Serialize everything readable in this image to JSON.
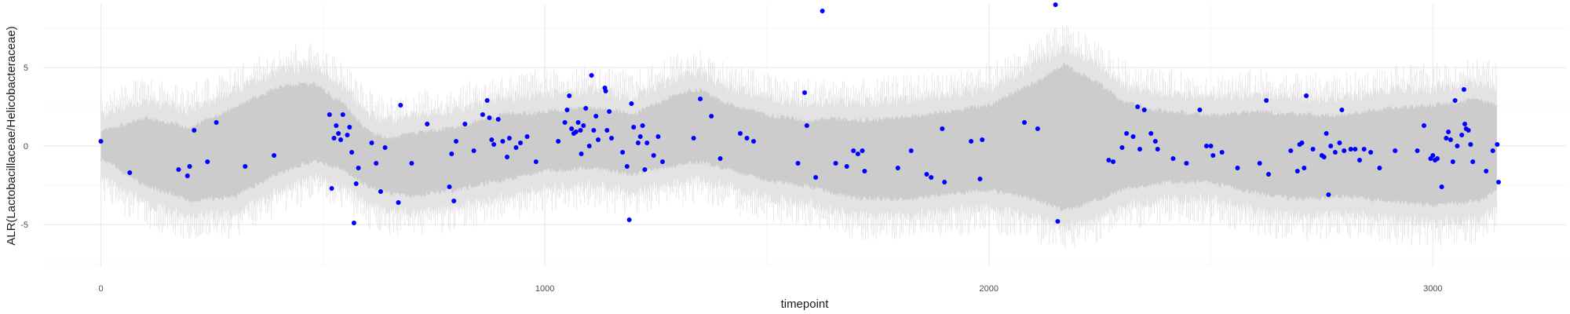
{
  "chart_data": {
    "type": "scatter",
    "title": "",
    "xlabel": "timepoint",
    "ylabel": "ALR(Lactobacillaceae/Helicobacteraceae)",
    "xlim": [
      -130,
      3300
    ],
    "ylim": [
      -7.7,
      9.0
    ],
    "x_ticks": [
      0,
      1000,
      2000,
      3000
    ],
    "x_tick_labels": [
      "0",
      "1000",
      "2000",
      "3000"
    ],
    "y_ticks": [
      -5,
      0,
      5
    ],
    "y_tick_labels": [
      "-5",
      "0",
      "5"
    ],
    "grid": true,
    "legend": "none",
    "colors": {
      "points": "#0000ff",
      "inner_band": "#cccccc",
      "outer_band": "#e3e3e3",
      "noise": "#d9d9d9",
      "grid_major": "#ebebeb",
      "grid_minor": "#f5f5f5"
    },
    "band": {
      "x": [
        0,
        100,
        200,
        300,
        400,
        480,
        550,
        600,
        650,
        700,
        800,
        900,
        1000,
        1100,
        1200,
        1300,
        1350,
        1400,
        1500,
        1600,
        1650,
        1700,
        1800,
        1900,
        2000,
        2100,
        2170,
        2250,
        2300,
        2400,
        2500,
        2600,
        2700,
        2800,
        2900,
        3000,
        3100,
        3145
      ],
      "inner_low": [
        -0.8,
        -2.5,
        -3.5,
        -3.2,
        -1.8,
        -0.9,
        -1.6,
        -2.6,
        -3.0,
        -3.2,
        -2.8,
        -2.2,
        -1.6,
        -1.4,
        -1.8,
        -1.2,
        -1.0,
        -1.4,
        -2.2,
        -2.6,
        -3.0,
        -3.3,
        -3.4,
        -3.1,
        -2.8,
        -3.4,
        -4.1,
        -3.4,
        -2.8,
        -2.3,
        -2.3,
        -3.0,
        -3.4,
        -3.2,
        -3.5,
        -3.8,
        -3.5,
        -2.9
      ],
      "inner_high": [
        0.9,
        1.8,
        1.2,
        2.4,
        3.8,
        4.0,
        2.6,
        1.0,
        0.5,
        0.8,
        1.2,
        2.0,
        2.2,
        2.5,
        2.0,
        3.3,
        3.6,
        2.8,
        2.0,
        1.6,
        1.8,
        1.6,
        1.8,
        2.2,
        2.6,
        4.0,
        5.2,
        4.0,
        2.8,
        2.2,
        2.0,
        2.2,
        2.0,
        2.0,
        2.4,
        2.6,
        3.0,
        2.6
      ],
      "outer_low": [
        -1.9,
        -3.6,
        -4.6,
        -4.3,
        -2.9,
        -2.0,
        -2.7,
        -3.7,
        -4.1,
        -4.3,
        -3.9,
        -3.3,
        -2.7,
        -2.5,
        -2.9,
        -2.3,
        -2.1,
        -2.5,
        -3.3,
        -3.7,
        -4.1,
        -4.4,
        -4.5,
        -4.2,
        -3.9,
        -4.5,
        -5.2,
        -4.5,
        -3.9,
        -3.4,
        -3.4,
        -4.1,
        -4.5,
        -4.3,
        -4.6,
        -4.9,
        -4.6,
        -4.0
      ],
      "outer_high": [
        2.0,
        2.9,
        2.3,
        3.5,
        4.9,
        5.1,
        3.7,
        2.1,
        1.6,
        1.9,
        2.3,
        3.1,
        3.3,
        3.6,
        3.1,
        4.4,
        4.7,
        3.9,
        3.1,
        2.7,
        2.9,
        2.7,
        2.9,
        3.3,
        3.7,
        5.1,
        6.3,
        5.1,
        3.9,
        3.3,
        3.1,
        3.3,
        3.1,
        3.1,
        3.5,
        3.7,
        4.1,
        3.7
      ]
    },
    "points": [
      [
        0,
        0.3
      ],
      [
        65,
        -1.7
      ],
      [
        175,
        -1.5
      ],
      [
        200,
        -1.3
      ],
      [
        195,
        -1.9
      ],
      [
        210,
        1.0
      ],
      [
        240,
        -1.0
      ],
      [
        260,
        1.5
      ],
      [
        325,
        -1.3
      ],
      [
        390,
        -0.6
      ],
      [
        515,
        2.0
      ],
      [
        520,
        -2.7
      ],
      [
        525,
        0.5
      ],
      [
        530,
        1.3
      ],
      [
        535,
        0.8
      ],
      [
        540,
        0.4
      ],
      [
        545,
        2.0
      ],
      [
        555,
        0.7
      ],
      [
        560,
        1.2
      ],
      [
        565,
        -0.4
      ],
      [
        570,
        -4.9
      ],
      [
        575,
        -2.4
      ],
      [
        580,
        -1.4
      ],
      [
        610,
        0.2
      ],
      [
        620,
        -1.1
      ],
      [
        630,
        -2.9
      ],
      [
        640,
        -0.1
      ],
      [
        670,
        -3.6
      ],
      [
        675,
        2.6
      ],
      [
        700,
        -1.1
      ],
      [
        735,
        1.4
      ],
      [
        785,
        -2.6
      ],
      [
        790,
        -0.5
      ],
      [
        795,
        -3.5
      ],
      [
        800,
        0.3
      ],
      [
        820,
        1.4
      ],
      [
        840,
        -0.3
      ],
      [
        860,
        2.0
      ],
      [
        870,
        2.9
      ],
      [
        875,
        1.8
      ],
      [
        880,
        0.4
      ],
      [
        885,
        0.1
      ],
      [
        895,
        1.7
      ],
      [
        905,
        0.3
      ],
      [
        915,
        -0.7
      ],
      [
        920,
        0.5
      ],
      [
        935,
        -0.1
      ],
      [
        945,
        0.2
      ],
      [
        960,
        0.6
      ],
      [
        980,
        -1.0
      ],
      [
        1030,
        0.3
      ],
      [
        1045,
        1.5
      ],
      [
        1050,
        2.3
      ],
      [
        1055,
        3.2
      ],
      [
        1060,
        1.1
      ],
      [
        1065,
        0.8
      ],
      [
        1070,
        0.9
      ],
      [
        1075,
        1.5
      ],
      [
        1080,
        1.0
      ],
      [
        1082,
        -0.5
      ],
      [
        1087,
        1.3
      ],
      [
        1092,
        2.4
      ],
      [
        1100,
        0.0
      ],
      [
        1105,
        4.5
      ],
      [
        1110,
        1.0
      ],
      [
        1115,
        1.9
      ],
      [
        1120,
        0.4
      ],
      [
        1135,
        3.7
      ],
      [
        1137,
        3.5
      ],
      [
        1140,
        1.0
      ],
      [
        1145,
        2.2
      ],
      [
        1150,
        0.5
      ],
      [
        1175,
        -0.4
      ],
      [
        1185,
        -1.3
      ],
      [
        1190,
        -4.7
      ],
      [
        1195,
        2.7
      ],
      [
        1200,
        1.2
      ],
      [
        1210,
        0.2
      ],
      [
        1215,
        0.6
      ],
      [
        1220,
        1.3
      ],
      [
        1225,
        -1.5
      ],
      [
        1230,
        0.2
      ],
      [
        1245,
        -0.6
      ],
      [
        1255,
        0.6
      ],
      [
        1265,
        -1.0
      ],
      [
        1335,
        0.5
      ],
      [
        1350,
        3.0
      ],
      [
        1375,
        1.9
      ],
      [
        1395,
        -0.8
      ],
      [
        1440,
        0.8
      ],
      [
        1455,
        0.5
      ],
      [
        1470,
        0.3
      ],
      [
        1570,
        -1.1
      ],
      [
        1585,
        3.4
      ],
      [
        1590,
        1.3
      ],
      [
        1610,
        -2.0
      ],
      [
        1625,
        8.6
      ],
      [
        1655,
        -1.1
      ],
      [
        1680,
        -1.3
      ],
      [
        1695,
        -0.3
      ],
      [
        1705,
        -0.5
      ],
      [
        1715,
        -0.3
      ],
      [
        1720,
        -1.6
      ],
      [
        1795,
        -1.4
      ],
      [
        1825,
        -0.3
      ],
      [
        1860,
        -1.8
      ],
      [
        1870,
        -2.0
      ],
      [
        1895,
        1.1
      ],
      [
        1900,
        -2.3
      ],
      [
        1960,
        0.3
      ],
      [
        1980,
        -2.1
      ],
      [
        1985,
        0.4
      ],
      [
        2080,
        1.5
      ],
      [
        2110,
        1.1
      ],
      [
        2150,
        9.0
      ],
      [
        2155,
        -4.8
      ],
      [
        2270,
        -0.9
      ],
      [
        2280,
        -1.0
      ],
      [
        2300,
        -0.1
      ],
      [
        2310,
        0.8
      ],
      [
        2325,
        0.6
      ],
      [
        2335,
        2.5
      ],
      [
        2340,
        -0.2
      ],
      [
        2350,
        2.3
      ],
      [
        2365,
        0.8
      ],
      [
        2375,
        0.3
      ],
      [
        2380,
        -0.2
      ],
      [
        2415,
        -0.8
      ],
      [
        2445,
        -1.1
      ],
      [
        2475,
        2.3
      ],
      [
        2490,
        0.0
      ],
      [
        2500,
        0.0
      ],
      [
        2505,
        -0.6
      ],
      [
        2525,
        -0.4
      ],
      [
        2560,
        -1.4
      ],
      [
        2610,
        -1.1
      ],
      [
        2625,
        2.9
      ],
      [
        2630,
        -1.8
      ],
      [
        2680,
        -0.3
      ],
      [
        2695,
        -1.6
      ],
      [
        2700,
        0.1
      ],
      [
        2705,
        0.2
      ],
      [
        2710,
        -1.4
      ],
      [
        2715,
        3.2
      ],
      [
        2730,
        -0.2
      ],
      [
        2750,
        -0.6
      ],
      [
        2755,
        -0.7
      ],
      [
        2760,
        0.8
      ],
      [
        2765,
        -3.1
      ],
      [
        2770,
        0.0
      ],
      [
        2780,
        -0.4
      ],
      [
        2790,
        0.2
      ],
      [
        2795,
        2.3
      ],
      [
        2800,
        -0.3
      ],
      [
        2815,
        -0.2
      ],
      [
        2825,
        -0.2
      ],
      [
        2835,
        -0.9
      ],
      [
        2845,
        -0.2
      ],
      [
        2860,
        -0.4
      ],
      [
        2880,
        -1.4
      ],
      [
        2915,
        -0.3
      ],
      [
        2965,
        -0.3
      ],
      [
        2980,
        1.3
      ],
      [
        2995,
        -0.8
      ],
      [
        3000,
        -0.6
      ],
      [
        3005,
        -0.9
      ],
      [
        3010,
        -0.8
      ],
      [
        3020,
        -2.6
      ],
      [
        3030,
        0.5
      ],
      [
        3035,
        0.9
      ],
      [
        3040,
        0.4
      ],
      [
        3045,
        -1.0
      ],
      [
        3050,
        2.9
      ],
      [
        3055,
        0.0
      ],
      [
        3065,
        0.7
      ],
      [
        3070,
        3.6
      ],
      [
        3072,
        1.4
      ],
      [
        3075,
        1.1
      ],
      [
        3080,
        1.0
      ],
      [
        3085,
        0.1
      ],
      [
        3090,
        -1.0
      ],
      [
        3120,
        -1.6
      ],
      [
        3135,
        -0.3
      ],
      [
        3145,
        0.1
      ],
      [
        3148,
        -2.3
      ]
    ]
  }
}
